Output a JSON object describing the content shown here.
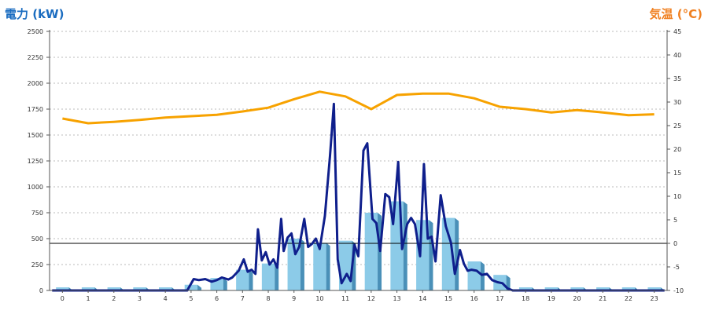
{
  "chart_data": {
    "type": "bar+line",
    "title_left": "電力 (kW)",
    "title_right": "気温 (°C)",
    "x": [
      "0",
      "1",
      "2",
      "3",
      "4",
      "5",
      "6",
      "7",
      "8",
      "9",
      "10",
      "11",
      "12",
      "13",
      "14",
      "15",
      "16",
      "17",
      "18",
      "19",
      "20",
      "21",
      "22",
      "23"
    ],
    "y_left": {
      "min": 0,
      "max": 2500,
      "step": 250
    },
    "y_right": {
      "min": -10,
      "max": 45,
      "step": 5
    },
    "reference_line_right": 0,
    "bars": {
      "color": "#8ccbe8",
      "values": [
        30,
        30,
        30,
        30,
        30,
        55,
        120,
        200,
        260,
        500,
        460,
        480,
        750,
        860,
        680,
        700,
        280,
        150,
        30,
        30,
        30,
        30,
        30,
        30
      ]
    },
    "power_line": {
      "color": "#0f1f8c",
      "points": [
        [
          -0.4,
          0
        ],
        [
          4.85,
          0
        ],
        [
          5.1,
          110
        ],
        [
          5.3,
          100
        ],
        [
          5.55,
          110
        ],
        [
          5.8,
          85
        ],
        [
          6.0,
          100
        ],
        [
          6.2,
          125
        ],
        [
          6.45,
          105
        ],
        [
          6.6,
          125
        ],
        [
          6.85,
          190
        ],
        [
          7.05,
          300
        ],
        [
          7.2,
          180
        ],
        [
          7.35,
          200
        ],
        [
          7.5,
          160
        ],
        [
          7.6,
          590
        ],
        [
          7.75,
          290
        ],
        [
          7.9,
          370
        ],
        [
          8.05,
          250
        ],
        [
          8.2,
          300
        ],
        [
          8.35,
          220
        ],
        [
          8.5,
          690
        ],
        [
          8.6,
          380
        ],
        [
          8.75,
          510
        ],
        [
          8.9,
          550
        ],
        [
          9.05,
          350
        ],
        [
          9.2,
          420
        ],
        [
          9.4,
          690
        ],
        [
          9.55,
          420
        ],
        [
          9.7,
          450
        ],
        [
          9.85,
          500
        ],
        [
          10.0,
          400
        ],
        [
          10.2,
          720
        ],
        [
          10.4,
          1300
        ],
        [
          10.55,
          1800
        ],
        [
          10.7,
          300
        ],
        [
          10.85,
          70
        ],
        [
          11.05,
          160
        ],
        [
          11.2,
          90
        ],
        [
          11.35,
          440
        ],
        [
          11.5,
          330
        ],
        [
          11.7,
          1350
        ],
        [
          11.85,
          1420
        ],
        [
          12.05,
          690
        ],
        [
          12.2,
          650
        ],
        [
          12.35,
          380
        ],
        [
          12.55,
          930
        ],
        [
          12.7,
          900
        ],
        [
          12.85,
          640
        ],
        [
          13.05,
          1240
        ],
        [
          13.2,
          400
        ],
        [
          13.4,
          640
        ],
        [
          13.55,
          700
        ],
        [
          13.7,
          640
        ],
        [
          13.9,
          330
        ],
        [
          14.05,
          1220
        ],
        [
          14.2,
          500
        ],
        [
          14.35,
          520
        ],
        [
          14.5,
          280
        ],
        [
          14.7,
          920
        ],
        [
          14.9,
          620
        ],
        [
          15.1,
          460
        ],
        [
          15.25,
          160
        ],
        [
          15.45,
          390
        ],
        [
          15.6,
          260
        ],
        [
          15.75,
          190
        ],
        [
          15.9,
          200
        ],
        [
          16.1,
          190
        ],
        [
          16.3,
          150
        ],
        [
          16.5,
          160
        ],
        [
          16.7,
          100
        ],
        [
          16.9,
          80
        ],
        [
          17.1,
          70
        ],
        [
          17.3,
          20
        ],
        [
          17.5,
          0
        ],
        [
          23.4,
          0
        ]
      ]
    },
    "temp_line": {
      "color": "#f7a200",
      "points": [
        [
          0,
          26.5
        ],
        [
          1,
          25.5
        ],
        [
          2,
          25.8
        ],
        [
          3,
          26.2
        ],
        [
          4,
          26.7
        ],
        [
          5,
          27.0
        ],
        [
          6,
          27.3
        ],
        [
          7,
          28.0
        ],
        [
          8,
          28.8
        ],
        [
          9,
          30.6
        ],
        [
          10,
          32.2
        ],
        [
          11,
          31.2
        ],
        [
          12,
          28.5
        ],
        [
          13,
          31.5
        ],
        [
          14,
          31.8
        ],
        [
          15,
          31.8
        ],
        [
          16,
          30.8
        ],
        [
          17,
          29.0
        ],
        [
          18,
          28.5
        ],
        [
          19,
          27.8
        ],
        [
          20,
          28.3
        ],
        [
          21,
          27.8
        ],
        [
          22,
          27.2
        ],
        [
          23,
          27.4
        ]
      ]
    }
  }
}
